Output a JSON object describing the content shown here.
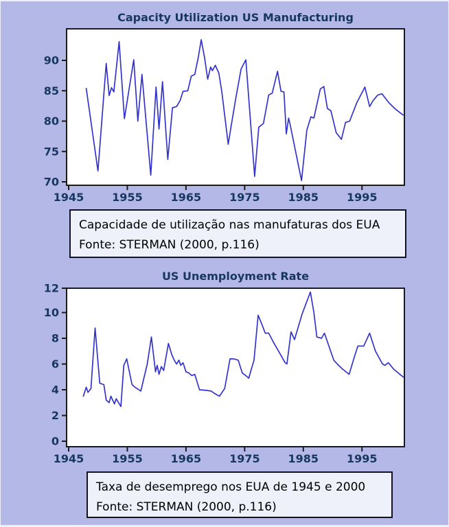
{
  "page": {
    "background": "#b3b8e7",
    "edge_color": "#eef0fa",
    "navy_text_color": "#17375e",
    "line_color": "#3333cc",
    "plot_bg": "#ffffff",
    "frame_color": "#1a1a1a",
    "caption_bg": "#eef0fa",
    "caption_border": "#111122",
    "caption_text_color": "#000000"
  },
  "chart_data": [
    {
      "type": "line",
      "title": "Capacity Utilization US Manufacturing",
      "xlabel": "",
      "ylabel": "",
      "grid": false,
      "legend_position": "none",
      "x_ticks": [
        1945,
        1955,
        1965,
        1975,
        1985,
        1995
      ],
      "y_ticks": [
        70,
        75,
        80,
        85,
        90
      ],
      "xlim": [
        1944.6,
        2002.2
      ],
      "ylim": [
        69.4,
        95.2
      ],
      "caption_line1": "Capacidade de utilização nas manufaturas dos EUA",
      "caption_line2": "Fonte: STERMAN (2000, p.116)",
      "series": [
        {
          "name": "US manufacturing capacity utilization (%)",
          "points": [
            [
              1948.0,
              85.4
            ],
            [
              1950.0,
              71.8
            ],
            [
              1951.4,
              89.5
            ],
            [
              1951.9,
              84.2
            ],
            [
              1952.3,
              85.5
            ],
            [
              1952.7,
              84.8
            ],
            [
              1953.6,
              93.1
            ],
            [
              1954.5,
              80.4
            ],
            [
              1956.1,
              90.1
            ],
            [
              1956.8,
              80.0
            ],
            [
              1957.5,
              87.7
            ],
            [
              1959.0,
              71.1
            ],
            [
              1959.9,
              85.6
            ],
            [
              1960.4,
              78.7
            ],
            [
              1961.0,
              86.5
            ],
            [
              1961.9,
              73.7
            ],
            [
              1962.7,
              82.2
            ],
            [
              1963.4,
              82.4
            ],
            [
              1964.0,
              83.4
            ],
            [
              1964.5,
              84.9
            ],
            [
              1965.3,
              85.0
            ],
            [
              1965.9,
              87.4
            ],
            [
              1966.5,
              87.7
            ],
            [
              1967.1,
              90.5
            ],
            [
              1967.6,
              93.4
            ],
            [
              1968.2,
              90.3
            ],
            [
              1968.7,
              86.9
            ],
            [
              1969.2,
              88.9
            ],
            [
              1969.5,
              88.3
            ],
            [
              1970.0,
              89.2
            ],
            [
              1970.6,
              87.9
            ],
            [
              1971.1,
              84.9
            ],
            [
              1972.2,
              76.2
            ],
            [
              1972.7,
              79.2
            ],
            [
              1973.5,
              83.8
            ],
            [
              1974.4,
              88.6
            ],
            [
              1975.2,
              90.1
            ],
            [
              1976.7,
              70.9
            ],
            [
              1977.4,
              79.0
            ],
            [
              1978.2,
              79.6
            ],
            [
              1979.1,
              84.3
            ],
            [
              1979.7,
              84.6
            ],
            [
              1980.6,
              88.2
            ],
            [
              1981.2,
              84.9
            ],
            [
              1981.7,
              84.8
            ],
            [
              1982.1,
              77.9
            ],
            [
              1982.5,
              80.5
            ],
            [
              1982.8,
              79.2
            ],
            [
              1984.7,
              70.2
            ],
            [
              1985.6,
              78.5
            ],
            [
              1986.3,
              80.7
            ],
            [
              1986.8,
              80.5
            ],
            [
              1987.9,
              85.3
            ],
            [
              1988.5,
              85.7
            ],
            [
              1989.1,
              82.1
            ],
            [
              1989.7,
              81.7
            ],
            [
              1990.6,
              78.1
            ],
            [
              1991.5,
              77.0
            ],
            [
              1992.2,
              79.8
            ],
            [
              1992.9,
              80.0
            ],
            [
              1994.1,
              83.0
            ],
            [
              1995.5,
              85.6
            ],
            [
              1996.3,
              82.4
            ],
            [
              1996.9,
              83.4
            ],
            [
              1997.7,
              84.3
            ],
            [
              1998.4,
              84.5
            ],
            [
              1999.6,
              83.0
            ],
            [
              2000.8,
              81.9
            ],
            [
              2002.0,
              81.0
            ]
          ]
        }
      ]
    },
    {
      "type": "line",
      "title": "US Unemployment Rate",
      "xlabel": "",
      "ylabel": "",
      "grid": false,
      "legend_position": "none",
      "x_ticks": [
        1945,
        1955,
        1965,
        1975,
        1985,
        1995
      ],
      "y_ticks": [
        0,
        2,
        4,
        6,
        8,
        10,
        12
      ],
      "xlim": [
        1944.6,
        2002.2
      ],
      "ylim": [
        -0.45,
        11.9
      ],
      "caption_line1": "Taxa de desemprego nos EUA de 1945 e 2000",
      "caption_line2": "Fonte: STERMAN (2000, p.116)",
      "series": [
        {
          "name": "US unemployment rate (%)",
          "points": [
            [
              1947.5,
              3.5
            ],
            [
              1948.0,
              4.2
            ],
            [
              1948.3,
              3.8
            ],
            [
              1948.8,
              4.1
            ],
            [
              1949.5,
              8.8
            ],
            [
              1950.3,
              4.5
            ],
            [
              1951.0,
              4.4
            ],
            [
              1951.4,
              3.2
            ],
            [
              1951.9,
              3.0
            ],
            [
              1952.2,
              3.5
            ],
            [
              1952.8,
              2.9
            ],
            [
              1953.1,
              3.3
            ],
            [
              1953.9,
              2.7
            ],
            [
              1954.4,
              5.9
            ],
            [
              1954.9,
              6.4
            ],
            [
              1955.8,
              4.4
            ],
            [
              1956.3,
              4.2
            ],
            [
              1957.3,
              3.9
            ],
            [
              1958.4,
              6.0
            ],
            [
              1959.1,
              8.1
            ],
            [
              1959.8,
              5.4
            ],
            [
              1960.1,
              5.9
            ],
            [
              1960.4,
              5.2
            ],
            [
              1960.8,
              5.8
            ],
            [
              1961.2,
              5.5
            ],
            [
              1962.0,
              7.6
            ],
            [
              1962.6,
              6.7
            ],
            [
              1963.0,
              6.3
            ],
            [
              1963.4,
              6.0
            ],
            [
              1963.8,
              6.3
            ],
            [
              1964.1,
              5.9
            ],
            [
              1964.5,
              6.1
            ],
            [
              1965.0,
              5.4
            ],
            [
              1965.5,
              5.3
            ],
            [
              1966.0,
              5.1
            ],
            [
              1966.5,
              5.2
            ],
            [
              1967.3,
              4.0
            ],
            [
              1968.5,
              3.95
            ],
            [
              1969.3,
              3.9
            ],
            [
              1969.9,
              3.7
            ],
            [
              1970.7,
              3.5
            ],
            [
              1971.6,
              4.1
            ],
            [
              1972.5,
              6.4
            ],
            [
              1973.2,
              6.4
            ],
            [
              1973.9,
              6.3
            ],
            [
              1974.6,
              5.3
            ],
            [
              1975.2,
              5.1
            ],
            [
              1975.7,
              4.9
            ],
            [
              1976.6,
              6.3
            ],
            [
              1977.3,
              9.8
            ],
            [
              1978.1,
              8.9
            ],
            [
              1978.5,
              8.4
            ],
            [
              1979.1,
              8.4
            ],
            [
              1979.9,
              7.7
            ],
            [
              1980.9,
              6.9
            ],
            [
              1981.9,
              6.1
            ],
            [
              1982.2,
              6.0
            ],
            [
              1982.9,
              8.5
            ],
            [
              1983.5,
              7.9
            ],
            [
              1984.8,
              9.9
            ],
            [
              1986.2,
              11.6
            ],
            [
              1986.8,
              10.0
            ],
            [
              1987.3,
              8.1
            ],
            [
              1988.1,
              8.0
            ],
            [
              1988.6,
              8.4
            ],
            [
              1989.5,
              7.2
            ],
            [
              1990.2,
              6.3
            ],
            [
              1991.0,
              5.9
            ],
            [
              1991.7,
              5.6
            ],
            [
              1992.8,
              5.2
            ],
            [
              1993.8,
              6.7
            ],
            [
              1994.3,
              7.4
            ],
            [
              1995.3,
              7.4
            ],
            [
              1996.3,
              8.4
            ],
            [
              1997.3,
              7.0
            ],
            [
              1998.5,
              6.0
            ],
            [
              1998.9,
              5.9
            ],
            [
              1999.5,
              6.1
            ],
            [
              2000.4,
              5.6
            ],
            [
              2002.0,
              5.0
            ]
          ]
        }
      ]
    }
  ]
}
